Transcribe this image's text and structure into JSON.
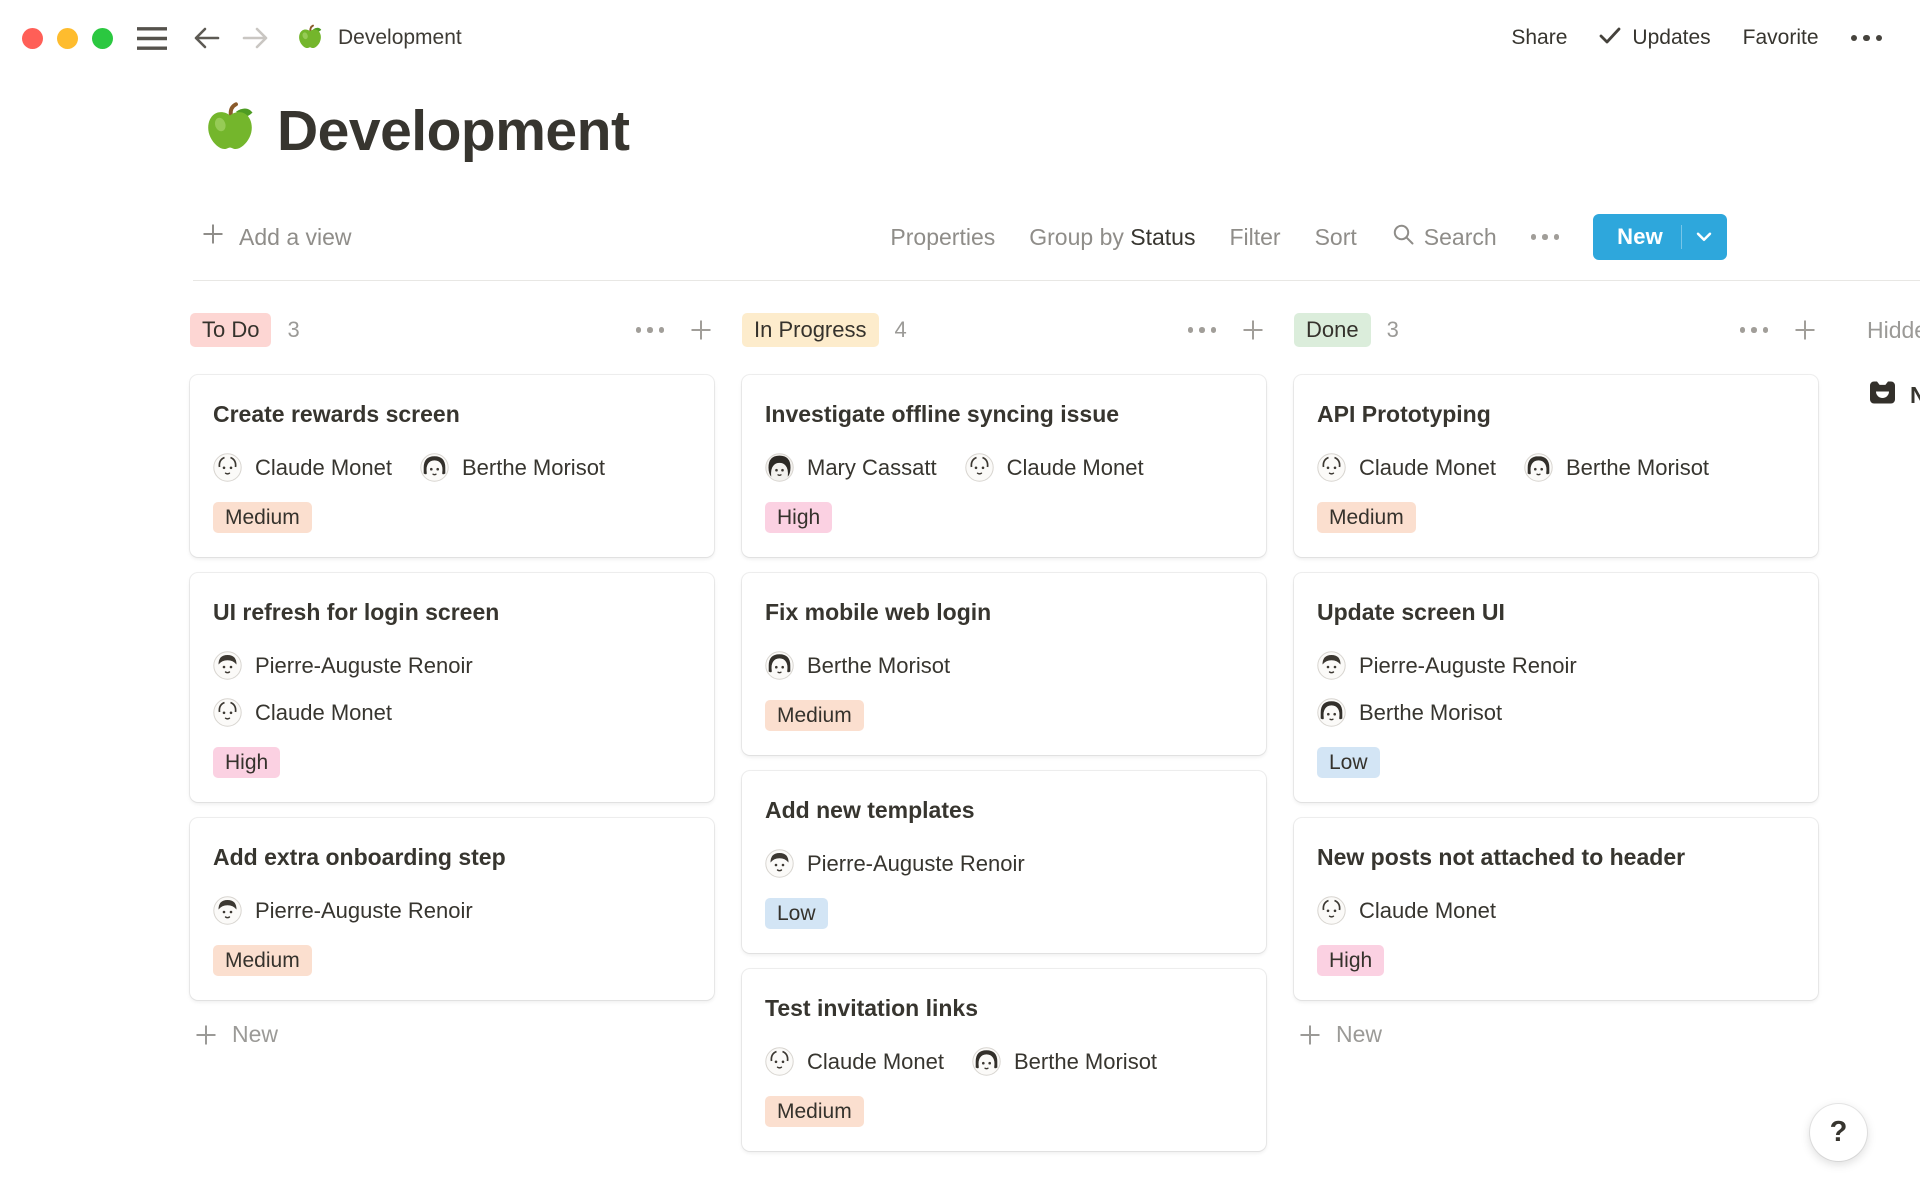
{
  "window": {
    "title": "Development",
    "doc_icon": "green-apple-icon"
  },
  "topbar": {
    "share_label": "Share",
    "updates_label": "Updates",
    "favorite_label": "Favorite"
  },
  "page": {
    "title": "Development",
    "icon": "green-apple-icon"
  },
  "toolbar": {
    "add_view": "Add a view",
    "properties": "Properties",
    "group_by": "Group by",
    "group_by_value": "Status",
    "filter": "Filter",
    "sort": "Sort",
    "search": "Search",
    "new": "New"
  },
  "colors": {
    "accent_blue": "#2ea7dc",
    "traffic_red": "#ff5f57",
    "traffic_yellow": "#febc2e",
    "traffic_green": "#2bc840",
    "status_todo_bg": "#fdd6d3",
    "status_inprogress_bg": "#fdeccc",
    "status_done_bg": "#dbeddb"
  },
  "priority_colors": {
    "High": "#fbd1e2",
    "Medium": "#fbdfcf",
    "Low": "#d3e5f5"
  },
  "board": {
    "new_card_label": "New",
    "hidden": {
      "label": "Hidden columns",
      "group_icon": "inbox-icon",
      "group_label": "No Status"
    },
    "columns": [
      {
        "status": "To Do",
        "count": "3",
        "badge_bg": "#fdd6d3",
        "show_new": true,
        "cards": [
          {
            "title": "Create rewards screen",
            "assignee_layout": "inline",
            "priority": "Medium",
            "assignees": [
              {
                "name": "Claude Monet",
                "avatar": "monet"
              },
              {
                "name": "Berthe Morisot",
                "avatar": "morisot"
              }
            ]
          },
          {
            "title": "UI refresh for login screen",
            "assignee_layout": "stacked",
            "priority": "High",
            "assignees": [
              {
                "name": "Pierre-Auguste Renoir",
                "avatar": "renoir"
              },
              {
                "name": "Claude Monet",
                "avatar": "monet"
              }
            ]
          },
          {
            "title": "Add extra onboarding step",
            "assignee_layout": "inline",
            "priority": "Medium",
            "assignees": [
              {
                "name": "Pierre-Auguste Renoir",
                "avatar": "renoir"
              }
            ]
          }
        ]
      },
      {
        "status": "In Progress",
        "count": "4",
        "badge_bg": "#fdeccc",
        "show_new": false,
        "cards": [
          {
            "title": "Investigate offline syncing issue",
            "assignee_layout": "inline",
            "priority": "High",
            "assignees": [
              {
                "name": "Mary Cassatt",
                "avatar": "cassatt"
              },
              {
                "name": "Claude Monet",
                "avatar": "monet"
              }
            ]
          },
          {
            "title": "Fix mobile web login",
            "assignee_layout": "inline",
            "priority": "Medium",
            "assignees": [
              {
                "name": "Berthe Morisot",
                "avatar": "morisot"
              }
            ]
          },
          {
            "title": "Add new templates",
            "assignee_layout": "inline",
            "priority": "Low",
            "assignees": [
              {
                "name": "Pierre-Auguste Renoir",
                "avatar": "renoir"
              }
            ]
          },
          {
            "title": "Test invitation links",
            "assignee_layout": "inline",
            "priority": "Medium",
            "assignees": [
              {
                "name": "Claude Monet",
                "avatar": "monet"
              },
              {
                "name": "Berthe Morisot",
                "avatar": "morisot"
              }
            ]
          }
        ]
      },
      {
        "status": "Done",
        "count": "3",
        "badge_bg": "#dbeddb",
        "show_new": true,
        "cards": [
          {
            "title": "API Prototyping",
            "assignee_layout": "inline",
            "priority": "Medium",
            "assignees": [
              {
                "name": "Claude Monet",
                "avatar": "monet"
              },
              {
                "name": "Berthe Morisot",
                "avatar": "morisot"
              }
            ]
          },
          {
            "title": "Update screen UI",
            "assignee_layout": "stacked",
            "priority": "Low",
            "assignees": [
              {
                "name": "Pierre-Auguste Renoir",
                "avatar": "renoir"
              },
              {
                "name": "Berthe Morisot",
                "avatar": "morisot"
              }
            ]
          },
          {
            "title": "New posts not attached to header",
            "assignee_layout": "inline",
            "priority": "High",
            "assignees": [
              {
                "name": "Claude Monet",
                "avatar": "monet"
              }
            ]
          }
        ]
      }
    ]
  },
  "help": {
    "label": "?"
  }
}
